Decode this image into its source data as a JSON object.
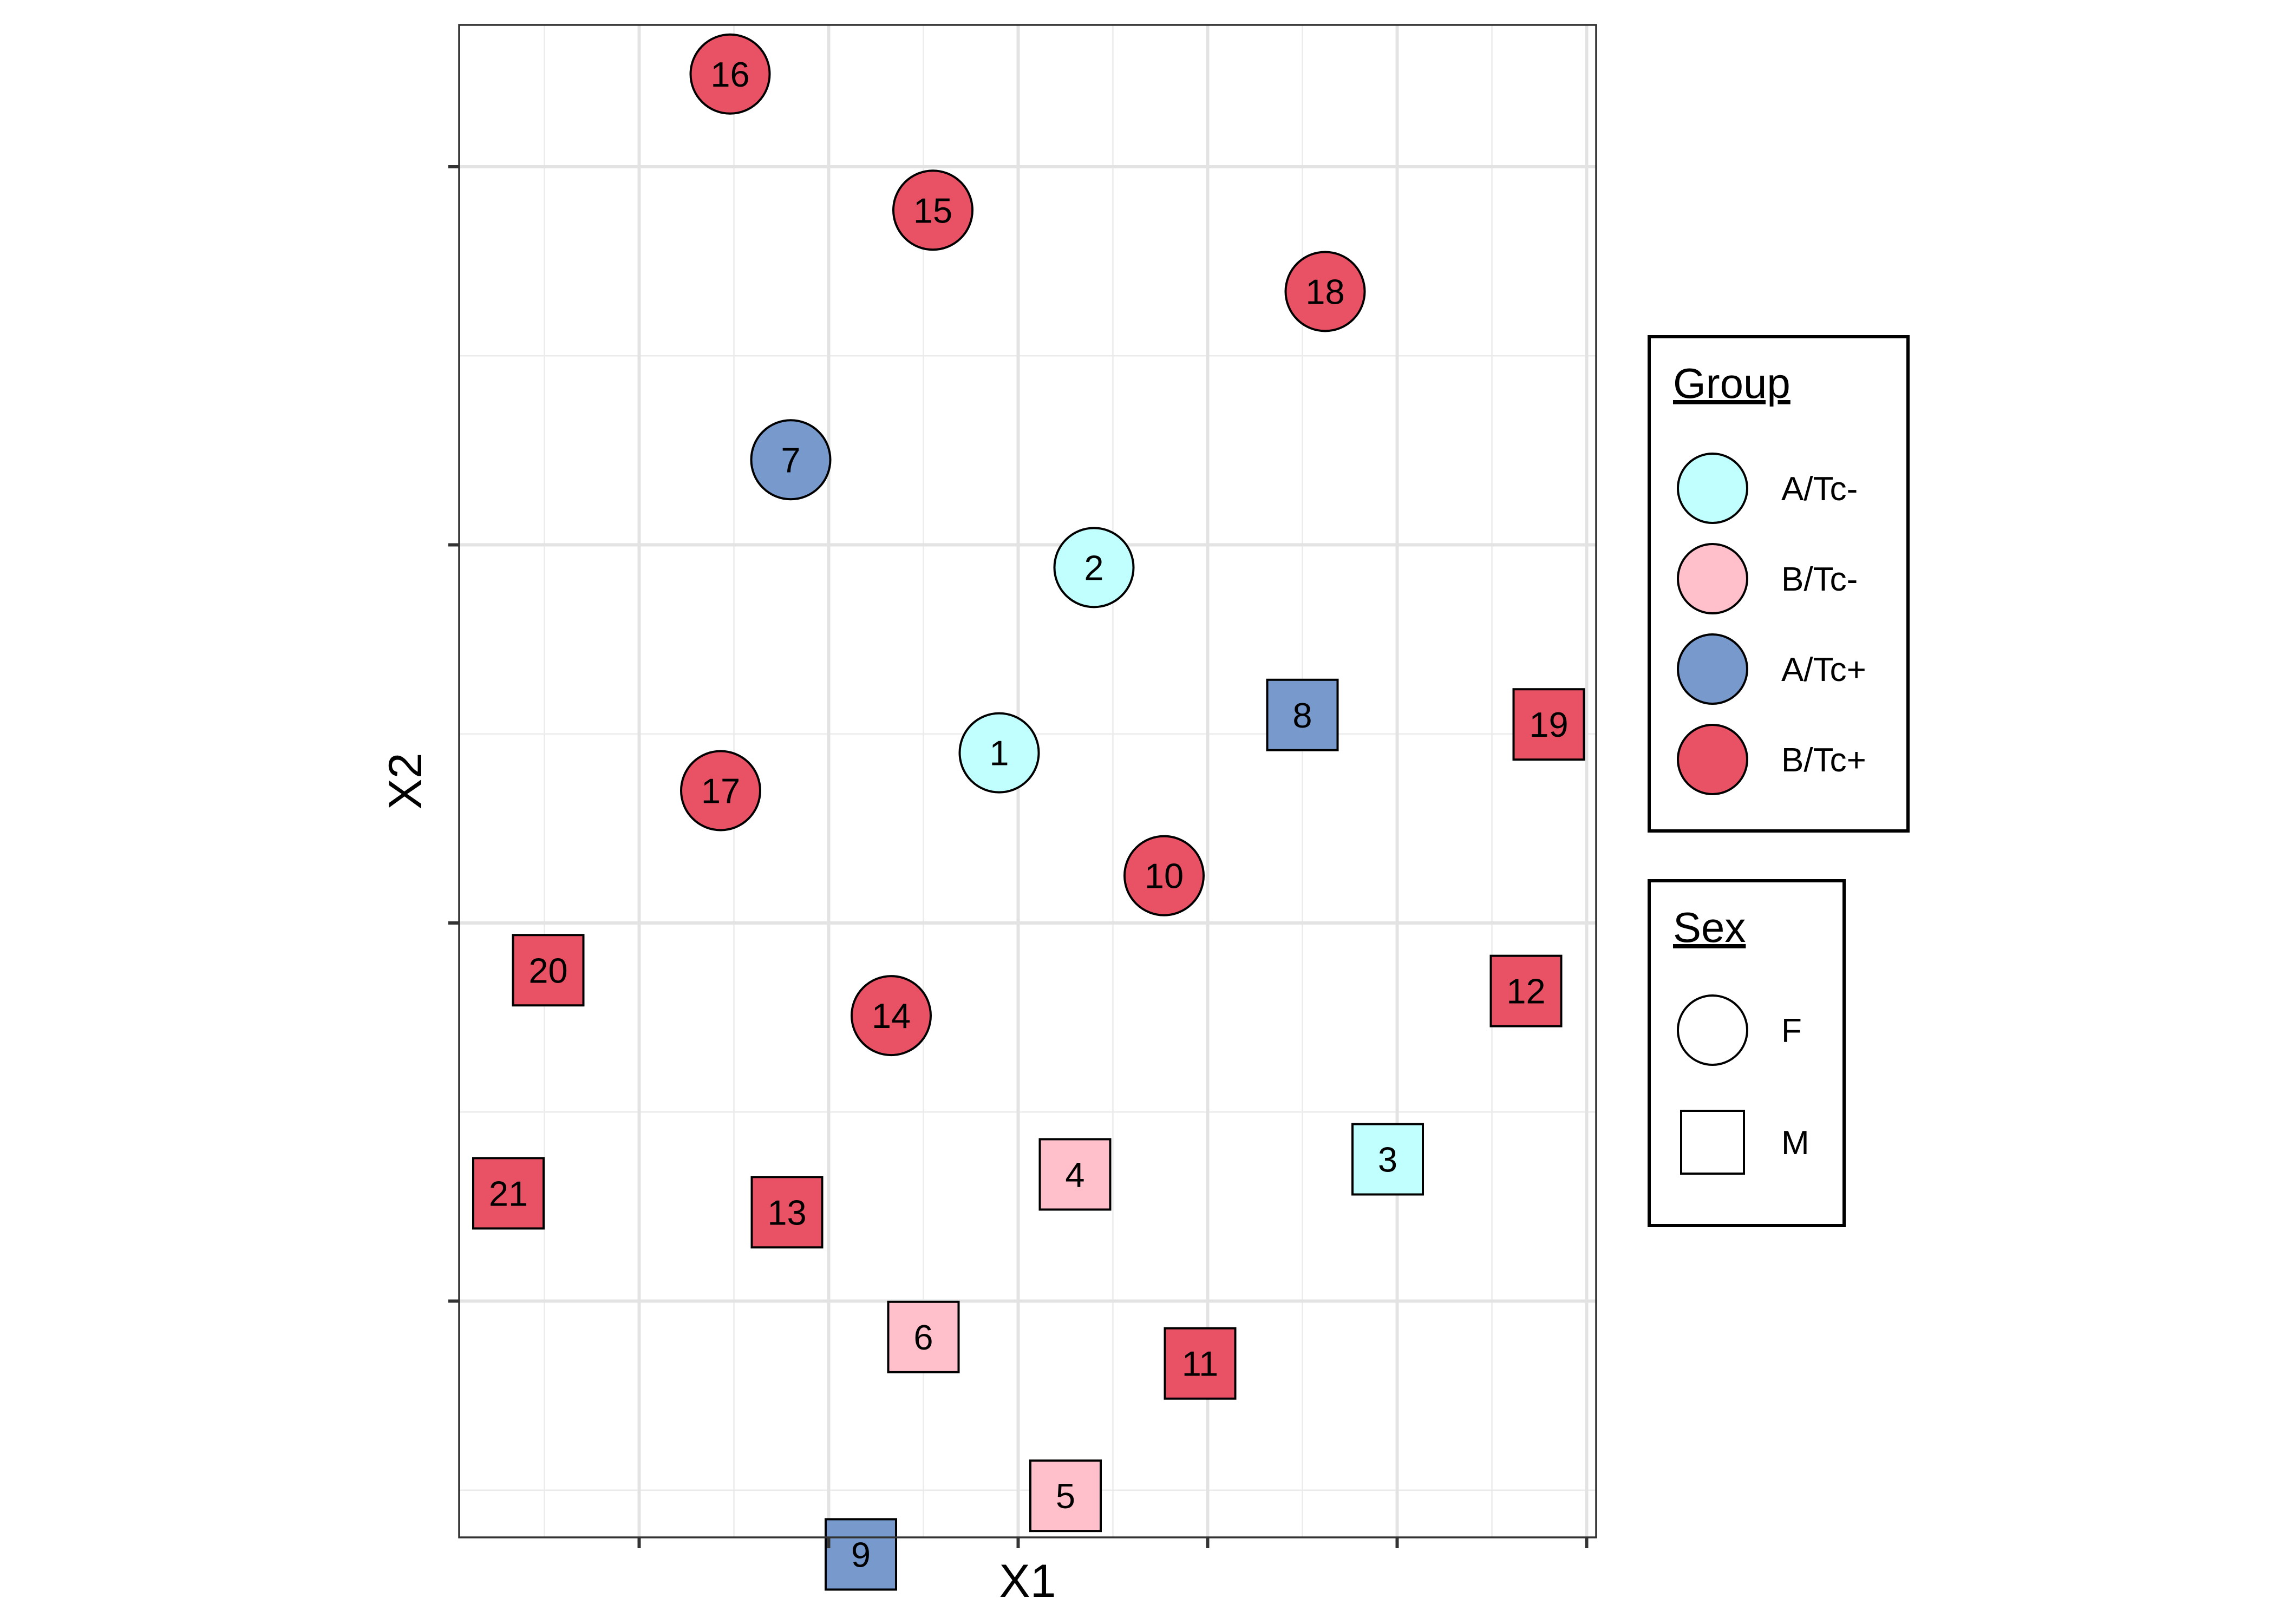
{
  "chart_data": {
    "type": "scatter",
    "title": "",
    "xlabel": "X1",
    "ylabel": "X2",
    "xlim": [
      -1.85,
      4.15
    ],
    "ylim": [
      -3.15,
      4.85
    ],
    "x_ticks": [
      -0.9,
      0.1,
      1.1,
      2.1,
      3.1,
      4.1
    ],
    "y_ticks": [
      -1.9,
      0.1,
      2.1,
      4.1
    ],
    "grid": true,
    "legend": {
      "group_title": "Group",
      "sex_title": "Sex",
      "groups": [
        {
          "name": "A/Tc-",
          "color": "#C1FFFF"
        },
        {
          "name": "B/Tc-",
          "color": "#FFC0CB"
        },
        {
          "name": "A/Tc+",
          "color": "#7799CC"
        },
        {
          "name": "B/Tc+",
          "color": "#E85264"
        }
      ],
      "sexes": [
        {
          "name": "F",
          "shape": "circle"
        },
        {
          "name": "M",
          "shape": "square"
        }
      ]
    },
    "points": [
      {
        "id": "1",
        "x": 1.0,
        "y": 1.0,
        "group": "A/Tc-",
        "sex": "F"
      },
      {
        "id": "2",
        "x": 1.5,
        "y": 1.98,
        "group": "A/Tc-",
        "sex": "F"
      },
      {
        "id": "3",
        "x": 3.05,
        "y": -1.15,
        "group": "A/Tc-",
        "sex": "M"
      },
      {
        "id": "4",
        "x": 1.4,
        "y": -1.23,
        "group": "B/Tc-",
        "sex": "M"
      },
      {
        "id": "5",
        "x": 1.35,
        "y": -2.93,
        "group": "B/Tc-",
        "sex": "M"
      },
      {
        "id": "6",
        "x": 0.6,
        "y": -2.09,
        "group": "B/Tc-",
        "sex": "M"
      },
      {
        "id": "7",
        "x": -0.1,
        "y": 2.55,
        "group": "A/Tc+",
        "sex": "F"
      },
      {
        "id": "8",
        "x": 2.6,
        "y": 1.2,
        "group": "A/Tc+",
        "sex": "M"
      },
      {
        "id": "9",
        "x": 0.27,
        "y": -3.24,
        "group": "A/Tc+",
        "sex": "M"
      },
      {
        "id": "10",
        "x": 1.87,
        "y": 0.35,
        "group": "B/Tc+",
        "sex": "F"
      },
      {
        "id": "11",
        "x": 2.06,
        "y": -2.23,
        "group": "B/Tc+",
        "sex": "M"
      },
      {
        "id": "12",
        "x": 3.78,
        "y": -0.26,
        "group": "B/Tc+",
        "sex": "M"
      },
      {
        "id": "13",
        "x": -0.12,
        "y": -1.43,
        "group": "B/Tc+",
        "sex": "M"
      },
      {
        "id": "14",
        "x": 0.43,
        "y": -0.39,
        "group": "B/Tc+",
        "sex": "F"
      },
      {
        "id": "15",
        "x": 0.65,
        "y": 3.87,
        "group": "B/Tc+",
        "sex": "F"
      },
      {
        "id": "16",
        "x": -0.42,
        "y": 4.59,
        "group": "B/Tc+",
        "sex": "F"
      },
      {
        "id": "17",
        "x": -0.47,
        "y": 0.8,
        "group": "B/Tc+",
        "sex": "F"
      },
      {
        "id": "18",
        "x": 2.72,
        "y": 3.44,
        "group": "B/Tc+",
        "sex": "F"
      },
      {
        "id": "19",
        "x": 3.9,
        "y": 1.15,
        "group": "B/Tc+",
        "sex": "M"
      },
      {
        "id": "20",
        "x": -1.38,
        "y": -0.15,
        "group": "B/Tc+",
        "sex": "M"
      },
      {
        "id": "21",
        "x": -1.59,
        "y": -1.33,
        "group": "B/Tc+",
        "sex": "M"
      }
    ]
  }
}
